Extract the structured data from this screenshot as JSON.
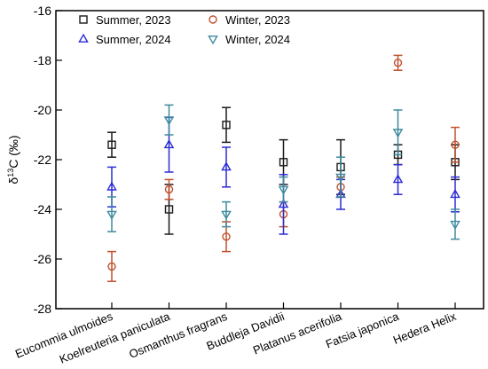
{
  "chart_data": {
    "type": "scatter",
    "error_bars": true,
    "ylabel": "δ13C (‰)",
    "ylabel_parts": {
      "delta": "δ",
      "sup": "13",
      "rest": "C (‰)"
    },
    "categories": [
      "Eucommia ulmoides",
      "Koelreuteria paniculata",
      "Osmanthus fragrans",
      "Buddleja Davidii",
      "Platanus acerifolia",
      "Fatsia japonica",
      "Hedera Helix"
    ],
    "ylim": [
      -28,
      -16
    ],
    "yticks": [
      -16,
      -18,
      -20,
      -22,
      -24,
      -26,
      -28
    ],
    "yticks_labels": [
      "-16",
      "-18",
      "-20",
      "-22",
      "-24",
      "-26",
      "-28"
    ],
    "grid": false,
    "legend_position": "top-left",
    "series": [
      {
        "name": "Summer, 2023",
        "marker": "square",
        "color": "#1a1a1a",
        "values": [
          -21.4,
          -24.0,
          -20.6,
          -22.1,
          -22.3,
          -21.8,
          -22.1
        ],
        "errors": [
          0.5,
          1.0,
          0.7,
          0.9,
          1.1,
          0.4,
          0.7
        ]
      },
      {
        "name": "Winter, 2023",
        "marker": "circle",
        "color": "#c0502e",
        "values": [
          -26.3,
          -23.2,
          -25.1,
          -24.2,
          -23.1,
          -18.1,
          -21.4
        ],
        "errors": [
          0.6,
          0.4,
          0.6,
          0.5,
          0.4,
          0.3,
          0.7
        ]
      },
      {
        "name": "Summer, 2024",
        "marker": "triangle-up",
        "color": "#2b2bd6",
        "values": [
          -23.1,
          -21.4,
          -22.3,
          -23.8,
          -23.4,
          -22.8,
          -23.4
        ],
        "errors": [
          0.8,
          1.1,
          0.8,
          1.2,
          0.6,
          0.6,
          0.7
        ]
      },
      {
        "name": "Winter, 2024",
        "marker": "triangle-down",
        "color": "#3e8a9e",
        "values": [
          -24.2,
          -20.4,
          -24.2,
          -23.2,
          -22.7,
          -20.9,
          -24.6
        ],
        "errors": [
          0.7,
          0.6,
          0.5,
          0.5,
          0.8,
          0.9,
          0.6
        ]
      }
    ]
  }
}
